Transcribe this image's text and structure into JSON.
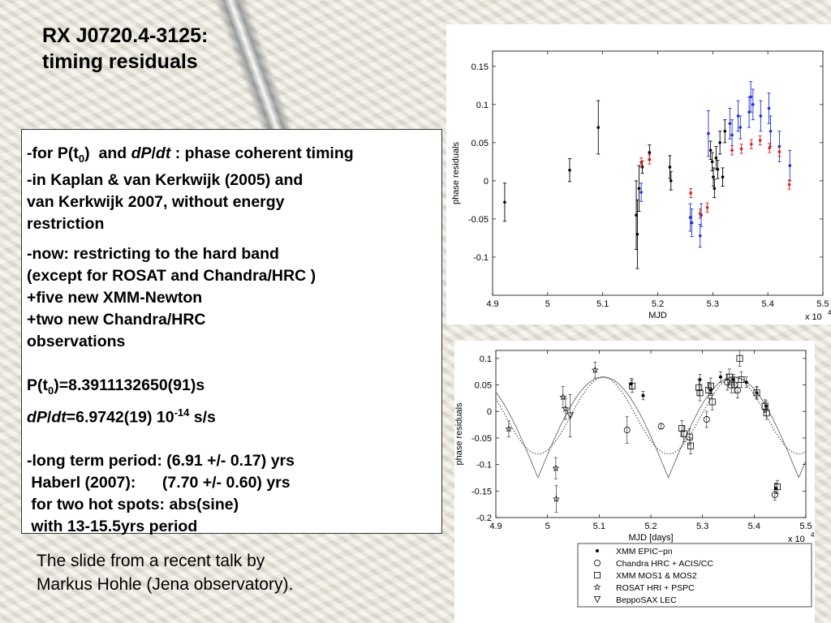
{
  "slide": {
    "title_line1": "RX J0720.4-3125:",
    "title_line2": "timing residuals",
    "credit_line1": "The slide from a recent talk by",
    "credit_line2": "Markus Hohle (Jena observatory)."
  },
  "textbox": {
    "l1_a": "-for P(t",
    "l1_sub": "0",
    "l1_b": ")  and ",
    "l1_dp": "dP",
    "l1_slash": "/",
    "l1_dt": "dt",
    "l1_c": " : phase coherent timing",
    "l2": "-in Kaplan & van Kerkwijk (2005) and",
    "l3": "van Kerkwijk 2007, without energy",
    "l4": "restriction",
    "l5": "-now: restricting to the hard band",
    "l6": "(except for ROSAT and Chandra/HRC )",
    "l7": "+five new XMM-Newton",
    "l8": "+two new Chandra/HRC",
    "l9": "observations",
    "p_a": "P(t",
    "p_sub": "0",
    "p_b": ")=8.3911132650(91)s",
    "d_dp": "dP",
    "d_slash": "/",
    "d_dt": "dt",
    "d_val": "=6.9742(19) 10",
    "d_sup": "-14",
    "d_unit": " s/s",
    "l10": "-long term period: (6.91 +/- 0.17) yrs",
    "l11": " Haberl (2007):      (7.70 +/- 0.60) yrs",
    "l12": " for two hot spots: abs(sine)",
    "l13": " with 13-15.5yrs period"
  },
  "chart_data": [
    {
      "type": "scatter",
      "xlabel": "MJD",
      "ylabel": "phase residuals",
      "x_multiplier": "x 10",
      "x_multiplier_exp": "4",
      "xlim": [
        4.9,
        5.5
      ],
      "ylim": [
        -0.15,
        0.17
      ],
      "x_ticks": [
        4.9,
        5,
        5.1,
        5.2,
        5.3,
        5.4,
        5.5
      ],
      "x_tick_labels": [
        "4.9",
        "5",
        "5.1",
        "5.2",
        "5.3",
        "5.4",
        "5.5"
      ],
      "y_ticks": [
        -0.1,
        -0.05,
        0,
        0.05,
        0.1,
        0.15
      ],
      "y_tick_labels": [
        "-0.1",
        "-0.05",
        "0",
        "0.05",
        "0.1",
        "0.15"
      ],
      "grid": false,
      "series": [
        {
          "color": "#000000",
          "points": [
            {
              "x": 4.922,
              "y": -0.028,
              "e": 0.025
            },
            {
              "x": 5.04,
              "y": 0.014,
              "e": 0.015
            },
            {
              "x": 5.092,
              "y": 0.07,
              "e": 0.035
            },
            {
              "x": 5.161,
              "y": -0.045,
              "e": 0.045
            },
            {
              "x": 5.163,
              "y": -0.07,
              "e": 0.045
            },
            {
              "x": 5.166,
              "y": -0.01,
              "e": 0.03
            },
            {
              "x": 5.172,
              "y": 0.018,
              "e": 0.008
            },
            {
              "x": 5.185,
              "y": 0.037,
              "e": 0.01
            },
            {
              "x": 5.222,
              "y": 0.018,
              "e": 0.015
            },
            {
              "x": 5.224,
              "y": 0.0,
              "e": 0.012
            },
            {
              "x": 5.296,
              "y": 0.04,
              "e": 0.012
            },
            {
              "x": 5.299,
              "y": 0.025,
              "e": 0.012
            },
            {
              "x": 5.301,
              "y": 0.005,
              "e": 0.012
            },
            {
              "x": 5.303,
              "y": -0.01,
              "e": 0.012
            },
            {
              "x": 5.306,
              "y": 0.03,
              "e": 0.015
            },
            {
              "x": 5.309,
              "y": 0.015,
              "e": 0.012
            },
            {
              "x": 5.313,
              "y": 0.05,
              "e": 0.015
            },
            {
              "x": 5.318,
              "y": 0.005,
              "e": 0.012
            },
            {
              "x": 5.322,
              "y": 0.065,
              "e": 0.015
            }
          ]
        },
        {
          "color": "#1f2fd6",
          "points": [
            {
              "x": 5.17,
              "y": -0.015,
              "e": 0.012
            },
            {
              "x": 5.259,
              "y": -0.048,
              "e": 0.018
            },
            {
              "x": 5.262,
              "y": -0.055,
              "e": 0.018
            },
            {
              "x": 5.277,
              "y": -0.072,
              "e": 0.015
            },
            {
              "x": 5.279,
              "y": -0.045,
              "e": 0.015
            },
            {
              "x": 5.292,
              "y": 0.062,
              "e": 0.03
            },
            {
              "x": 5.331,
              "y": 0.075,
              "e": 0.02
            },
            {
              "x": 5.335,
              "y": 0.06,
              "e": 0.02
            },
            {
              "x": 5.346,
              "y": 0.085,
              "e": 0.02
            },
            {
              "x": 5.35,
              "y": 0.07,
              "e": 0.015
            },
            {
              "x": 5.366,
              "y": 0.09,
              "e": 0.02
            },
            {
              "x": 5.369,
              "y": 0.11,
              "e": 0.02
            },
            {
              "x": 5.373,
              "y": 0.1,
              "e": 0.02
            },
            {
              "x": 5.387,
              "y": 0.085,
              "e": 0.02
            },
            {
              "x": 5.402,
              "y": 0.095,
              "e": 0.02
            },
            {
              "x": 5.405,
              "y": 0.065,
              "e": 0.02
            },
            {
              "x": 5.421,
              "y": 0.045,
              "e": 0.02
            },
            {
              "x": 5.44,
              "y": 0.02,
              "e": 0.02
            }
          ]
        },
        {
          "color": "#d81f1f",
          "points": [
            {
              "x": 5.17,
              "y": 0.024,
              "e": 0.006
            },
            {
              "x": 5.185,
              "y": 0.028,
              "e": 0.006
            },
            {
              "x": 5.26,
              "y": -0.016,
              "e": 0.006
            },
            {
              "x": 5.277,
              "y": -0.043,
              "e": 0.006
            },
            {
              "x": 5.29,
              "y": -0.035,
              "e": 0.006
            },
            {
              "x": 5.335,
              "y": 0.04,
              "e": 0.006
            },
            {
              "x": 5.352,
              "y": 0.042,
              "e": 0.006
            },
            {
              "x": 5.37,
              "y": 0.048,
              "e": 0.006
            },
            {
              "x": 5.386,
              "y": 0.053,
              "e": 0.006
            },
            {
              "x": 5.403,
              "y": 0.043,
              "e": 0.006
            },
            {
              "x": 5.421,
              "y": 0.038,
              "e": 0.006
            },
            {
              "x": 5.439,
              "y": -0.005,
              "e": 0.006
            }
          ]
        }
      ]
    },
    {
      "type": "scatter",
      "xlabel": "MJD [days]",
      "ylabel": "phase residuals",
      "x_multiplier": "x 10",
      "x_multiplier_exp": "4",
      "xlim": [
        4.9,
        5.5
      ],
      "ylim": [
        -0.2,
        0.115
      ],
      "x_ticks": [
        4.9,
        5,
        5.1,
        5.2,
        5.3,
        5.4,
        5.5
      ],
      "x_tick_labels": [
        "4.9",
        "5",
        "5.1",
        "5.2",
        "5.3",
        "5.4",
        "5.5"
      ],
      "y_ticks": [
        -0.2,
        -0.15,
        -0.1,
        -0.05,
        0,
        0.05,
        0.1
      ],
      "y_tick_labels": [
        "-0.2",
        "-0.15",
        "-0.1",
        "-0.05",
        "0",
        "0.05",
        "0.1"
      ],
      "grid": false,
      "legend_position": "bottom-right",
      "series": [
        {
          "name": "XMM EPIC−pn",
          "marker": "dot",
          "points": [
            {
              "x": 5.162,
              "y": 0.052,
              "e": 0.01
            },
            {
              "x": 5.185,
              "y": 0.03,
              "e": 0.008
            },
            {
              "x": 5.295,
              "y": 0.06,
              "e": 0.01
            },
            {
              "x": 5.316,
              "y": 0.04,
              "e": 0.01
            },
            {
              "x": 5.335,
              "y": 0.065,
              "e": 0.01
            },
            {
              "x": 5.36,
              "y": 0.06,
              "e": 0.01
            },
            {
              "x": 5.385,
              "y": 0.055,
              "e": 0.01
            },
            {
              "x": 5.405,
              "y": 0.035,
              "e": 0.01
            },
            {
              "x": 5.423,
              "y": 0.01,
              "e": 0.01
            },
            {
              "x": 5.442,
              "y": -0.145,
              "e": 0.01
            }
          ]
        },
        {
          "name": "Chandra HRC + ACIS/CC",
          "marker": "circle",
          "points": [
            {
              "x": 5.154,
              "y": -0.035,
              "e": 0.025
            },
            {
              "x": 5.22,
              "y": -0.028,
              "e": 0.005
            },
            {
              "x": 5.308,
              "y": -0.015,
              "e": 0.015
            },
            {
              "x": 5.348,
              "y": 0.055,
              "e": 0.015
            },
            {
              "x": 5.362,
              "y": 0.05,
              "e": 0.015
            },
            {
              "x": 5.368,
              "y": 0.04,
              "e": 0.015
            },
            {
              "x": 5.44,
              "y": -0.157,
              "e": 0.01
            }
          ]
        },
        {
          "name": "XMM MOS1 & MOS2",
          "marker": "square",
          "points": [
            {
              "x": 5.164,
              "y": 0.048,
              "e": 0.012
            },
            {
              "x": 5.26,
              "y": -0.032,
              "e": 0.015
            },
            {
              "x": 5.264,
              "y": -0.042,
              "e": 0.015
            },
            {
              "x": 5.275,
              "y": -0.048,
              "e": 0.015
            },
            {
              "x": 5.277,
              "y": -0.065,
              "e": 0.015
            },
            {
              "x": 5.293,
              "y": 0.045,
              "e": 0.015
            },
            {
              "x": 5.295,
              "y": 0.035,
              "e": 0.015
            },
            {
              "x": 5.312,
              "y": 0.04,
              "e": 0.015
            },
            {
              "x": 5.316,
              "y": 0.048,
              "e": 0.015
            },
            {
              "x": 5.319,
              "y": 0.018,
              "e": 0.015
            },
            {
              "x": 5.352,
              "y": 0.065,
              "e": 0.015
            },
            {
              "x": 5.356,
              "y": 0.05,
              "e": 0.015
            },
            {
              "x": 5.372,
              "y": 0.1,
              "e": 0.015
            },
            {
              "x": 5.375,
              "y": 0.06,
              "e": 0.015
            },
            {
              "x": 5.405,
              "y": 0.035,
              "e": 0.012
            },
            {
              "x": 5.421,
              "y": 0.01,
              "e": 0.012
            },
            {
              "x": 5.424,
              "y": -0.003,
              "e": 0.012
            },
            {
              "x": 5.445,
              "y": -0.142,
              "e": 0.012
            }
          ]
        },
        {
          "name": "ROSAT HRI + PSPC",
          "marker": "star",
          "points": [
            {
              "x": 4.925,
              "y": -0.033,
              "e": 0.015
            },
            {
              "x": 5.016,
              "y": -0.107,
              "e": 0.02
            },
            {
              "x": 5.017,
              "y": -0.165,
              "e": 0.025
            },
            {
              "x": 5.03,
              "y": 0.027,
              "e": 0.02
            },
            {
              "x": 5.035,
              "y": 0.005,
              "e": 0.02
            },
            {
              "x": 5.092,
              "y": 0.078,
              "e": 0.015
            }
          ]
        },
        {
          "name": "BeppoSAX LEC",
          "marker": "triangle-down",
          "points": [
            {
              "x": 5.044,
              "y": -0.008,
              "e": 0.04
            }
          ]
        }
      ]
    }
  ]
}
